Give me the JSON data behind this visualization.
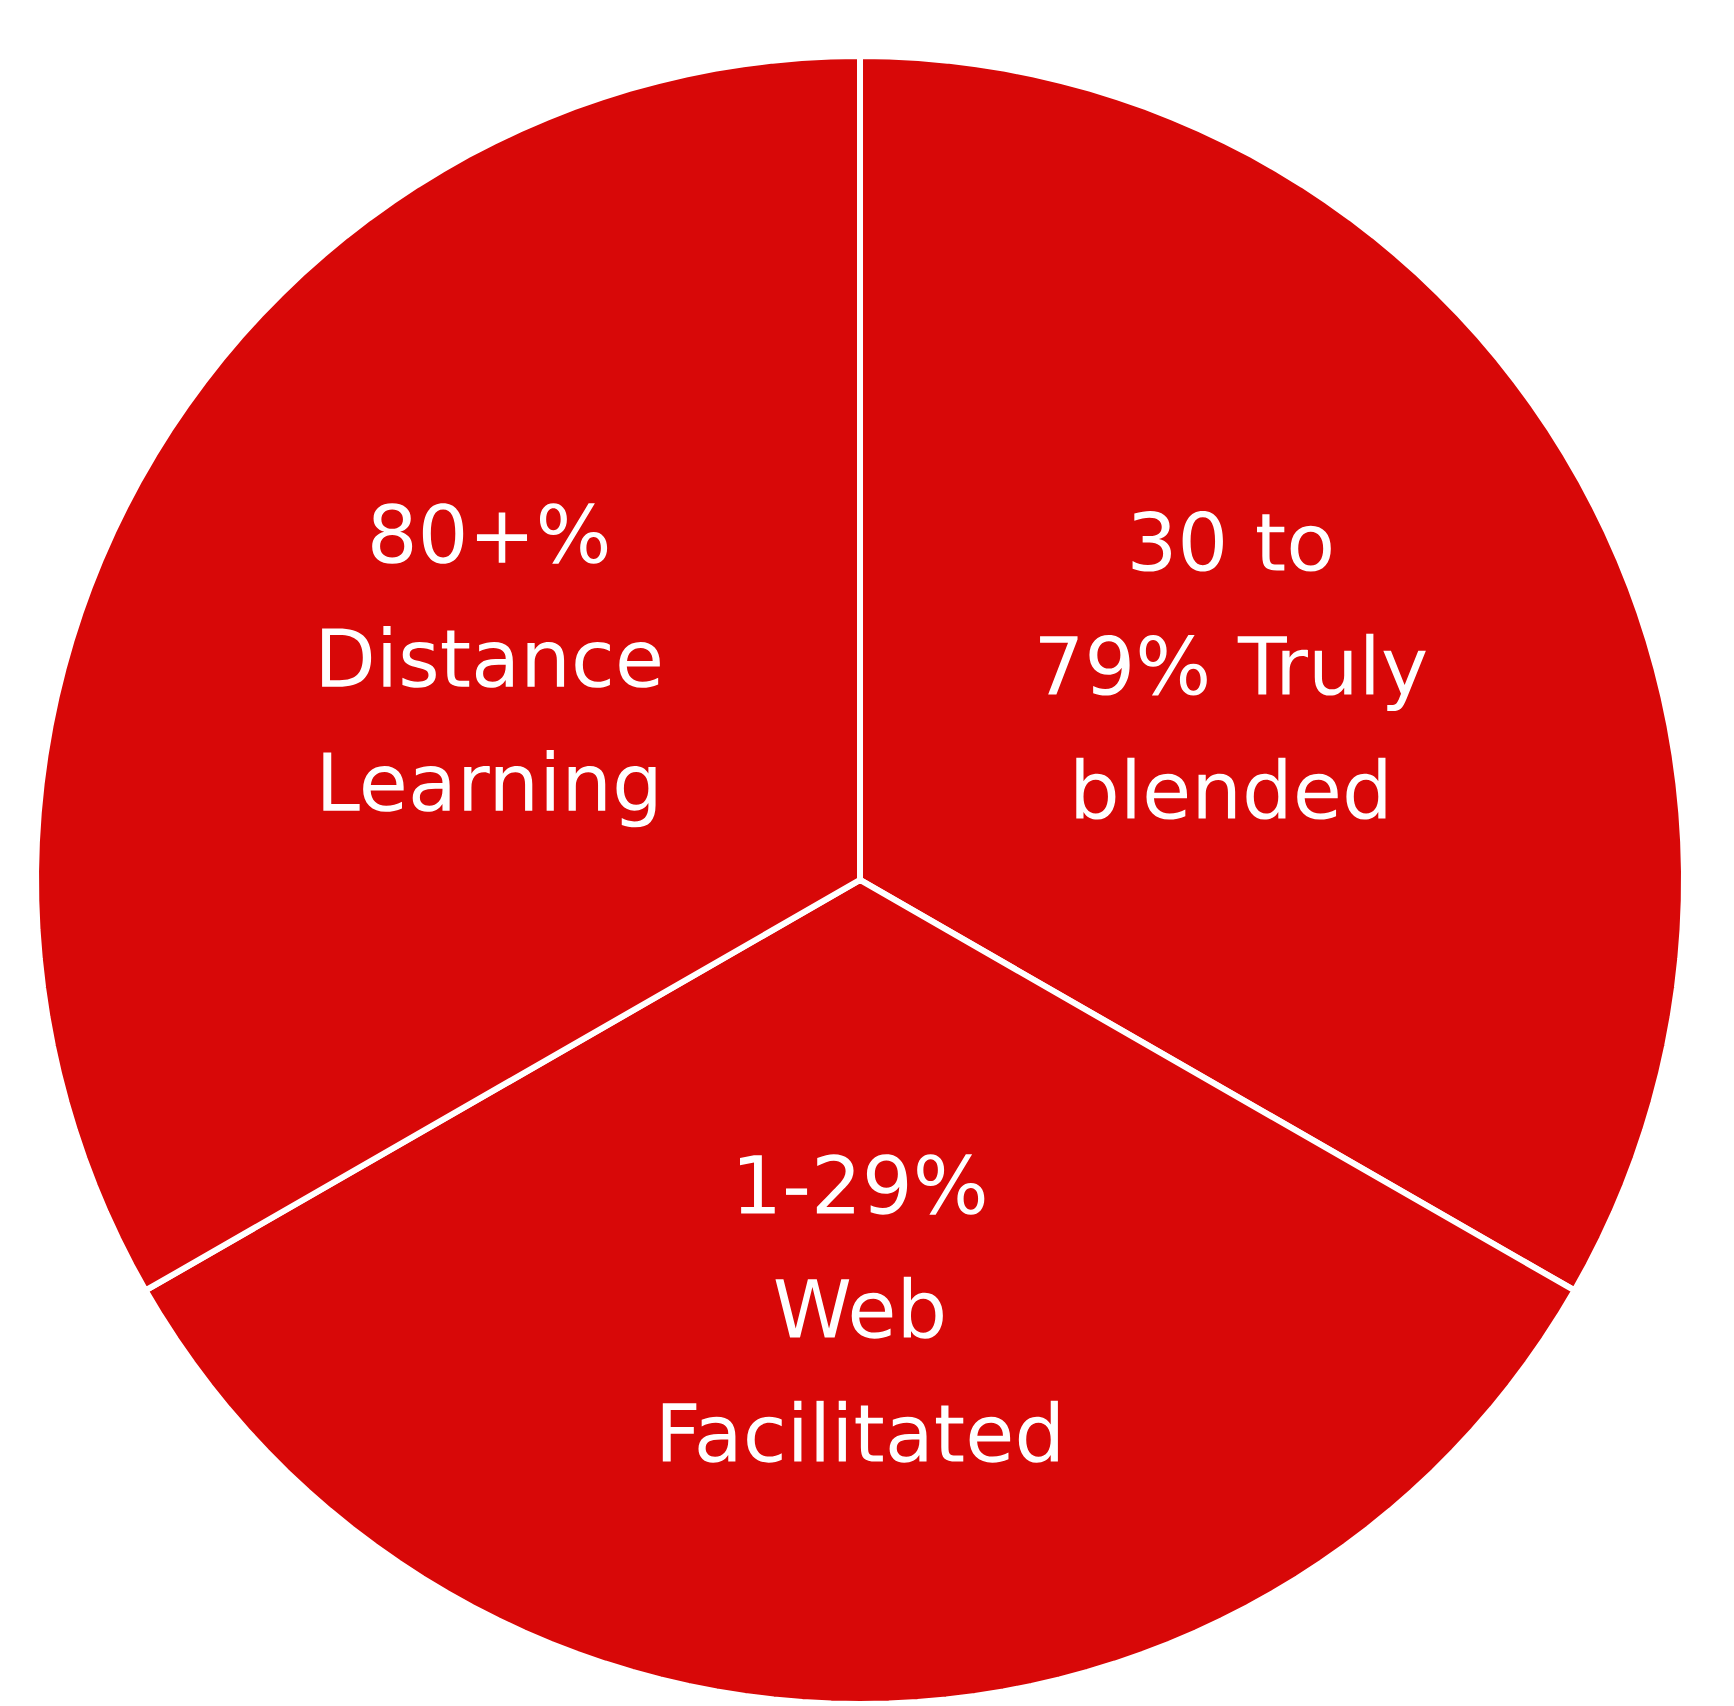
{
  "chart_data": {
    "type": "pie",
    "categories": [
      "30 to 79% Truly blended",
      "1-29% Web Facilitated",
      "80+% Distance Learning"
    ],
    "values": [
      33.3,
      33.4,
      33.3
    ],
    "colors": [
      "#d80808",
      "#d80808",
      "#d80808"
    ]
  }
}
